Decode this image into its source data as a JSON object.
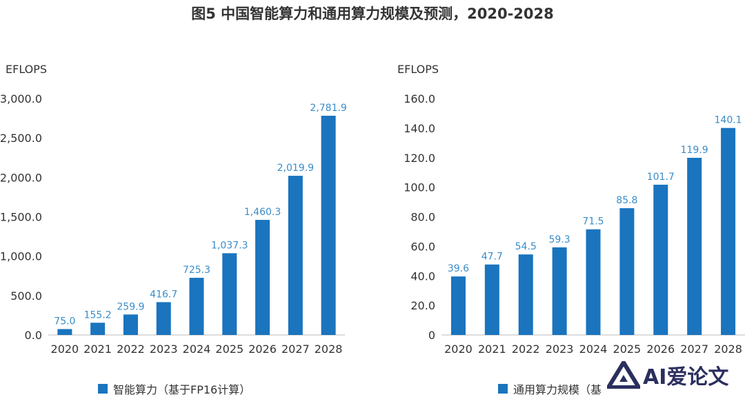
{
  "title": "图5 中国智能算力和通用算力规模及预测，2020-2028",
  "logo_text": "AI爱论文",
  "colors": {
    "bar": "#1a74be",
    "label": "#3a8cc8",
    "axis": "#bbbbbb",
    "text": "#333333"
  },
  "chart_data": [
    {
      "type": "bar",
      "unit": "EFLOPS",
      "categories": [
        "2020",
        "2021",
        "2022",
        "2023",
        "2024",
        "2025",
        "2026",
        "2027",
        "2028"
      ],
      "values": [
        75.0,
        155.2,
        259.9,
        416.7,
        725.3,
        1037.3,
        1460.3,
        2019.9,
        2781.9
      ],
      "value_labels": [
        "75.0",
        "155.2",
        "259.9",
        "416.7",
        "725.3",
        "1,037.3",
        "1,460.3",
        "2,019.9",
        "2,781.9"
      ],
      "ylim": [
        0,
        3000
      ],
      "yticks": [
        0,
        500,
        1000,
        1500,
        2000,
        2500,
        3000
      ],
      "ytick_labels": [
        "0.0",
        "500.0",
        "1,000.0",
        "1,500.0",
        "2,000.0",
        "2,500.0",
        "3,000.0"
      ],
      "legend": "智能算力（基于FP16计算）",
      "grid": false
    },
    {
      "type": "bar",
      "unit": "EFLOPS",
      "categories": [
        "2020",
        "2021",
        "2022",
        "2023",
        "2024",
        "2025",
        "2026",
        "2027",
        "2028"
      ],
      "values": [
        39.6,
        47.7,
        54.5,
        59.3,
        71.5,
        85.8,
        101.7,
        119.9,
        140.1
      ],
      "value_labels": [
        "39.6",
        "47.7",
        "54.5",
        "59.3",
        "71.5",
        "85.8",
        "101.7",
        "119.9",
        "140.1"
      ],
      "ylim": [
        0,
        160
      ],
      "yticks": [
        0,
        20,
        40,
        60,
        80,
        100,
        120,
        140,
        160
      ],
      "ytick_labels": [
        "0",
        "20.0",
        "40.0",
        "60.0",
        "80.0",
        "100.0",
        "120.0",
        "140.0",
        "160.0"
      ],
      "legend": "通用算力规模（基",
      "grid": false
    }
  ]
}
